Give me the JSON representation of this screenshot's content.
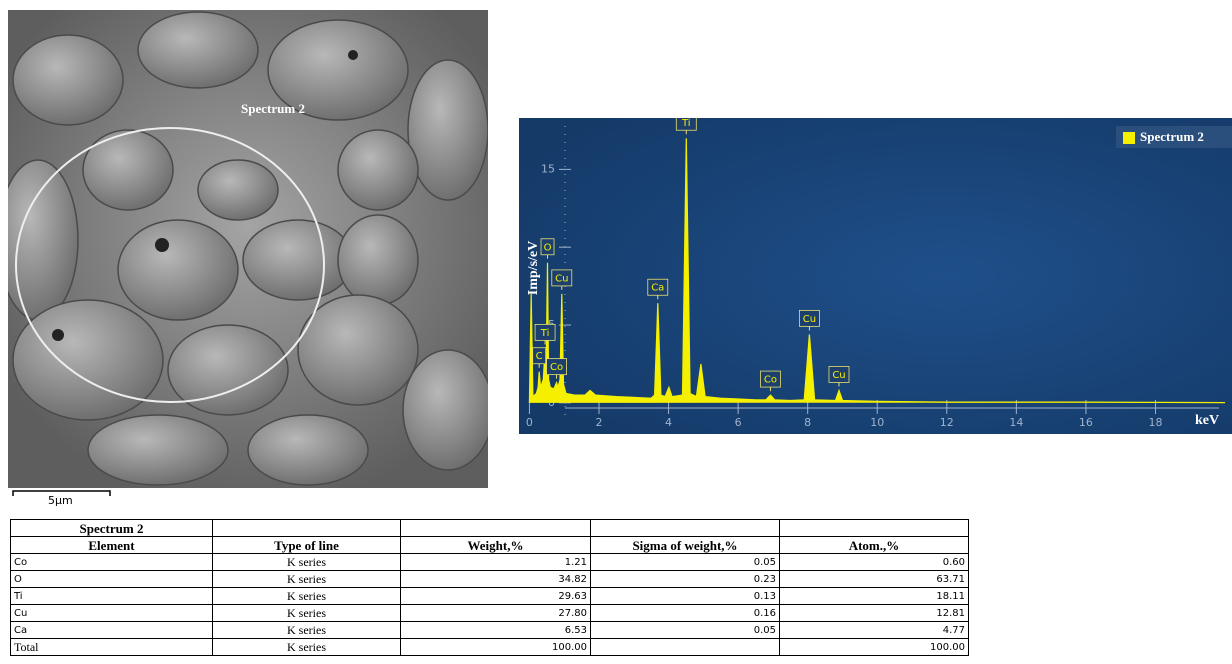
{
  "image": {
    "label": "Spectrum 2",
    "scale_bar": "5μm"
  },
  "chart_data": {
    "type": "line",
    "legend": "upper right",
    "x_label": "keV",
    "y_label": "Imp/s/eV",
    "xlim": [
      -0.3,
      20.2
    ],
    "ylim": [
      -2,
      18.3
    ],
    "xticks": [
      0,
      2,
      4,
      6,
      8,
      10,
      12,
      14,
      16,
      18
    ],
    "yticks": [
      0,
      5,
      10,
      15
    ],
    "x": [
      0,
      0.05,
      0.1,
      0.2,
      0.25,
      0.28,
      0.32,
      0.4,
      0.45,
      0.48,
      0.52,
      0.55,
      0.6,
      0.7,
      0.78,
      0.82,
      0.88,
      0.93,
      0.98,
      1.05,
      1.3,
      1.6,
      1.74,
      1.9,
      2.5,
      3.0,
      3.5,
      3.6,
      3.69,
      3.78,
      3.9,
      4.01,
      4.1,
      4.4,
      4.51,
      4.62,
      4.8,
      4.93,
      5.05,
      5.5,
      6.0,
      6.5,
      6.8,
      6.93,
      7.05,
      7.5,
      7.9,
      8.05,
      8.2,
      8.8,
      8.9,
      9.0,
      10,
      12,
      14,
      16,
      18,
      20
    ],
    "series": [
      {
        "name": "Spectrum 2",
        "color": "#f5f000",
        "values": [
          0,
          7.0,
          0.4,
          0.6,
          1.0,
          2.0,
          1.0,
          1.5,
          3.5,
          2.0,
          9.0,
          1.5,
          1.0,
          0.9,
          1.3,
          1.0,
          1.5,
          7.0,
          1.2,
          0.6,
          0.5,
          0.5,
          0.8,
          0.5,
          0.4,
          0.35,
          0.3,
          0.5,
          6.4,
          0.5,
          0.4,
          1.0,
          0.4,
          0.5,
          17.0,
          0.6,
          0.4,
          2.5,
          0.4,
          0.3,
          0.25,
          0.2,
          0.2,
          0.5,
          0.2,
          0.15,
          0.2,
          4.4,
          0.2,
          0.15,
          0.8,
          0.15,
          0.1,
          0.05,
          0.05,
          0.05,
          0.03,
          0.02
        ]
      }
    ],
    "peaks": [
      {
        "label": "C",
        "x": 0.28
      },
      {
        "label": "Ti",
        "x": 0.45
      },
      {
        "label": "O",
        "x": 0.52
      },
      {
        "label": "Co",
        "x": 0.78
      },
      {
        "label": "Cu",
        "x": 0.93
      },
      {
        "label": "Ca",
        "x": 3.69
      },
      {
        "label": "Ti",
        "x": 4.51
      },
      {
        "label": "Co",
        "x": 6.93
      },
      {
        "label": "Cu",
        "x": 8.05
      },
      {
        "label": "Cu",
        "x": 8.9
      }
    ]
  },
  "table": {
    "title": "Spectrum 2",
    "header": [
      "Element",
      "Type of line",
      "Weight,%",
      "Sigma of weight,%",
      "Atom.,%"
    ],
    "rows": [
      [
        "Co",
        "K series",
        "1.21",
        "0.05",
        "0.60"
      ],
      [
        "O",
        "K series",
        "34.82",
        "0.23",
        "63.71"
      ],
      [
        "Ti",
        "K series",
        "29.63",
        "0.13",
        "18.11"
      ],
      [
        "Cu",
        "K series",
        "27.80",
        "0.16",
        "12.81"
      ],
      [
        "Ca",
        "K series",
        "6.53",
        "0.05",
        "4.77"
      ],
      [
        "Total",
        "K series",
        "100.00",
        null,
        "100.00"
      ]
    ]
  }
}
